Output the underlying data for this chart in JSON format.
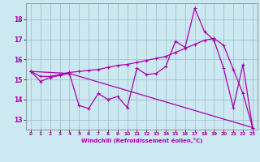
{
  "xlabel": "Windchill (Refroidissement éolien,°C)",
  "background_color": "#cce8f0",
  "line_color": "#aa00aa",
  "grid_color": "#99bbcc",
  "ylim": [
    12.5,
    18.8
  ],
  "xlim": [
    -0.5,
    23.5
  ],
  "yticks": [
    13,
    14,
    15,
    16,
    17,
    18
  ],
  "xticks": [
    0,
    1,
    2,
    3,
    4,
    5,
    6,
    7,
    8,
    9,
    10,
    11,
    12,
    13,
    14,
    15,
    16,
    17,
    18,
    19,
    20,
    21,
    22,
    23
  ],
  "series1_x": [
    0,
    1,
    2,
    3,
    4,
    5,
    6,
    7,
    8,
    9,
    10,
    11,
    12,
    13,
    14,
    15,
    16,
    17,
    18,
    19,
    20,
    21,
    22,
    23
  ],
  "series1_y": [
    15.4,
    14.9,
    15.1,
    15.2,
    15.3,
    13.7,
    13.55,
    14.3,
    14.0,
    14.15,
    13.6,
    15.55,
    15.25,
    15.3,
    15.65,
    16.9,
    16.6,
    18.55,
    17.4,
    16.95,
    15.55,
    13.6,
    15.75,
    12.6
  ],
  "series2_x": [
    0,
    1,
    2,
    3,
    4,
    5,
    6,
    7,
    8,
    9,
    10,
    11,
    12,
    13,
    14,
    15,
    16,
    17,
    18,
    19,
    20,
    21,
    22,
    23
  ],
  "series2_y": [
    15.4,
    15.15,
    15.15,
    15.25,
    15.35,
    15.4,
    15.45,
    15.5,
    15.6,
    15.7,
    15.75,
    15.85,
    15.95,
    16.05,
    16.15,
    16.35,
    16.55,
    16.75,
    16.95,
    17.05,
    16.7,
    15.5,
    14.3,
    12.6
  ],
  "series3_x": [
    0,
    4,
    23
  ],
  "series3_y": [
    15.4,
    15.3,
    12.6
  ]
}
